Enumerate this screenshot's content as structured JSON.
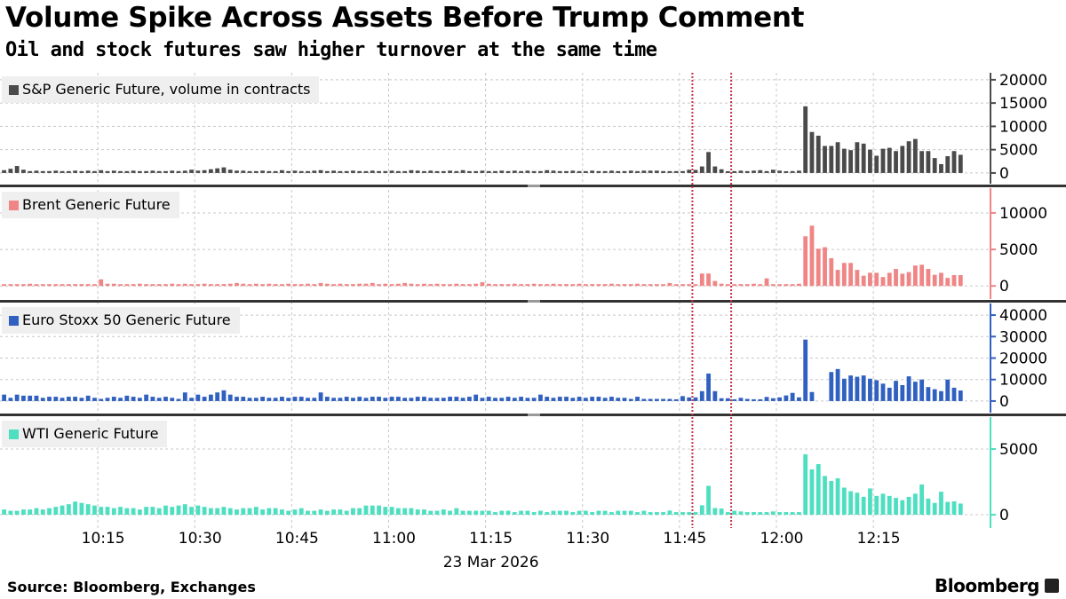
{
  "header": {
    "title": "Volume Spike Across Assets Before Trump Comment",
    "subtitle": "Oil and stock futures saw higher turnover at the same time"
  },
  "footer": {
    "source": "Source: Bloomberg, Exchanges",
    "brand": "Bloomberg"
  },
  "chart_data": {
    "type": "bar",
    "title": "Volume Spike Across Assets Before Trump Comment",
    "subtitle": "Oil and stock futures saw higher turnover at the same time",
    "x_unit": "minute",
    "x_start": "10:00",
    "x_end": "12:28",
    "date_label": "23 Mar 2026",
    "x_ticks": [
      "10:15",
      "10:30",
      "10:45",
      "11:00",
      "11:15",
      "11:30",
      "11:45",
      "12:00",
      "12:15"
    ],
    "x_tick_minutes": [
      15,
      30,
      45,
      60,
      75,
      90,
      105,
      120,
      135
    ],
    "markers": {
      "times": [
        "11:47",
        "11:53"
      ],
      "minutes": [
        107,
        113
      ],
      "color": "#c8324a",
      "style": "dotted"
    },
    "grid": true,
    "ylabel_position": "right",
    "series": [
      {
        "name": "S&P Generic Future, volume in contracts",
        "color": "#4a4a4a",
        "ylim": [
          -2300,
          21500
        ],
        "yticks": [
          0,
          5000,
          10000,
          15000,
          20000
        ],
        "ytick_labels": [
          "0",
          "5000",
          "10000",
          "15000",
          "20000"
        ],
        "values": [
          600,
          900,
          1500,
          700,
          400,
          500,
          400,
          400,
          500,
          400,
          400,
          500,
          400,
          500,
          400,
          600,
          400,
          500,
          400,
          400,
          500,
          400,
          400,
          500,
          400,
          400,
          500,
          400,
          500,
          700,
          500,
          600,
          800,
          1000,
          1200,
          700,
          500,
          500,
          400,
          400,
          500,
          400,
          400,
          600,
          400,
          500,
          400,
          400,
          500,
          600,
          400,
          500,
          400,
          400,
          500,
          400,
          400,
          500,
          400,
          400,
          500,
          400,
          400,
          600,
          500,
          400,
          500,
          400,
          400,
          500,
          400,
          600,
          400,
          400,
          500,
          400,
          400,
          500,
          400,
          500,
          400,
          500,
          400,
          400,
          600,
          500,
          400,
          400,
          500,
          400,
          400,
          500,
          400,
          400,
          500,
          400,
          400,
          500,
          400,
          500,
          500,
          500,
          400,
          400,
          400,
          400,
          700,
          650,
          1400,
          4500,
          1400,
          800,
          300,
          400,
          500,
          400,
          500,
          600,
          400,
          700,
          500,
          300,
          400,
          500,
          14300,
          8800,
          8000,
          5800,
          5800,
          6600,
          5200,
          4900,
          6600,
          6300,
          5000,
          3700,
          5200,
          5400,
          4700,
          5800,
          6800,
          7300,
          4700,
          4700,
          3200,
          1900,
          3600,
          4700,
          3900
        ]
      },
      {
        "name": "Brent Generic Future",
        "color": "#f08585",
        "ylim": [
          -1800,
          13400
        ],
        "yticks": [
          0,
          5000,
          10000
        ],
        "ytick_labels": [
          "0",
          "5000",
          "10000"
        ],
        "values": [
          100,
          200,
          100,
          200,
          300,
          200,
          200,
          100,
          200,
          200,
          150,
          200,
          200,
          250,
          200,
          900,
          300,
          300,
          200,
          200,
          200,
          300,
          200,
          200,
          250,
          200,
          300,
          200,
          300,
          200,
          200,
          300,
          250,
          200,
          250,
          300,
          400,
          300,
          200,
          300,
          200,
          300,
          250,
          200,
          300,
          250,
          200,
          300,
          200,
          400,
          300,
          200,
          300,
          250,
          200,
          300,
          300,
          400,
          200,
          300,
          200,
          300,
          400,
          300,
          200,
          300,
          250,
          300,
          200,
          200,
          300,
          250,
          200,
          300,
          500,
          300,
          200,
          250,
          200,
          300,
          200,
          250,
          300,
          200,
          250,
          300,
          200,
          250,
          200,
          300,
          200,
          250,
          200,
          250,
          300,
          200,
          250,
          200,
          300,
          200,
          200,
          150,
          200,
          400,
          200,
          200,
          100,
          200,
          1700,
          1700,
          670,
          300,
          150,
          150,
          250,
          200,
          300,
          200,
          1040,
          150,
          200,
          150,
          200,
          300,
          6800,
          8260,
          5100,
          5300,
          3800,
          2200,
          3150,
          3150,
          2200,
          1400,
          1800,
          1800,
          1220,
          1800,
          2330,
          1670,
          1900,
          2800,
          2900,
          2330,
          1520,
          1800,
          1100,
          1480,
          1480
        ]
      },
      {
        "name": "Euro Stoxx 50 Generic Future",
        "color": "#3060c0",
        "ylim": [
          -5400,
          45400
        ],
        "yticks": [
          0,
          10000,
          20000,
          30000,
          40000
        ],
        "ytick_labels": [
          "0",
          "10000",
          "20000",
          "30000",
          "40000"
        ],
        "values": [
          3000,
          1500,
          3000,
          2500,
          2500,
          2500,
          1500,
          2000,
          2000,
          1500,
          2000,
          2000,
          1500,
          2500,
          1500,
          1000,
          1500,
          2000,
          1500,
          2500,
          2000,
          1500,
          3000,
          2000,
          1500,
          2000,
          1500,
          1000,
          4000,
          1500,
          3000,
          2000,
          3000,
          4000,
          5000,
          3000,
          2000,
          2000,
          1500,
          1500,
          2000,
          1500,
          1500,
          2000,
          1500,
          2000,
          2000,
          1500,
          1500,
          4000,
          2000,
          1500,
          1500,
          2000,
          1500,
          2000,
          1500,
          2000,
          2000,
          1500,
          2000,
          2000,
          1500,
          1500,
          2000,
          2000,
          1500,
          1500,
          1500,
          2000,
          2000,
          1500,
          2000,
          3000,
          1500,
          2000,
          1500,
          1500,
          2000,
          1500,
          2000,
          1500,
          1500,
          3000,
          2000,
          1500,
          2000,
          2000,
          1500,
          2000,
          1500,
          2000,
          2000,
          1500,
          2000,
          1500,
          1500,
          1000,
          2000,
          1000,
          1000,
          1000,
          1000,
          1000,
          400,
          2300,
          1700,
          1700,
          4600,
          12800,
          4600,
          1300,
          1300,
          800,
          1500,
          1000,
          400,
          400,
          1900,
          1300,
          1700,
          2600,
          3800,
          1700,
          28600,
          4200,
          0,
          0,
          13500,
          14900,
          10400,
          11900,
          11300,
          11900,
          10400,
          9700,
          8100,
          6200,
          9400,
          7400,
          11500,
          9000,
          10000,
          6500,
          5500,
          4600,
          10000,
          6200,
          4900
        ]
      },
      {
        "name": "WTI Generic Future",
        "color": "#4ddfc0",
        "ylim": [
          -1010,
          7430
        ],
        "yticks": [
          0,
          5000
        ],
        "ytick_labels": [
          "0",
          "5000"
        ],
        "values": [
          400,
          300,
          300,
          400,
          400,
          500,
          400,
          500,
          600,
          700,
          800,
          1000,
          900,
          800,
          700,
          600,
          600,
          500,
          600,
          500,
          500,
          400,
          600,
          600,
          500,
          700,
          600,
          700,
          800,
          600,
          700,
          600,
          500,
          500,
          600,
          500,
          400,
          500,
          500,
          600,
          400,
          500,
          500,
          400,
          300,
          400,
          500,
          300,
          300,
          400,
          300,
          400,
          400,
          300,
          500,
          500,
          700,
          700,
          700,
          600,
          600,
          500,
          500,
          500,
          400,
          400,
          300,
          300,
          400,
          300,
          500,
          300,
          300,
          300,
          300,
          300,
          200,
          300,
          300,
          200,
          300,
          300,
          200,
          300,
          200,
          300,
          300,
          300,
          200,
          300,
          300,
          200,
          300,
          300,
          200,
          300,
          300,
          300,
          200,
          300,
          200,
          200,
          200,
          320,
          200,
          200,
          200,
          200,
          720,
          2200,
          510,
          470,
          200,
          300,
          250,
          200,
          200,
          200,
          200,
          250,
          200,
          200,
          200,
          200,
          4600,
          3450,
          3850,
          2950,
          2570,
          2770,
          2060,
          1790,
          1680,
          1360,
          2000,
          1430,
          1600,
          1430,
          1280,
          1110,
          1360,
          1600,
          2300,
          1230,
          900,
          1750,
          980,
          1020,
          850
        ]
      }
    ]
  }
}
